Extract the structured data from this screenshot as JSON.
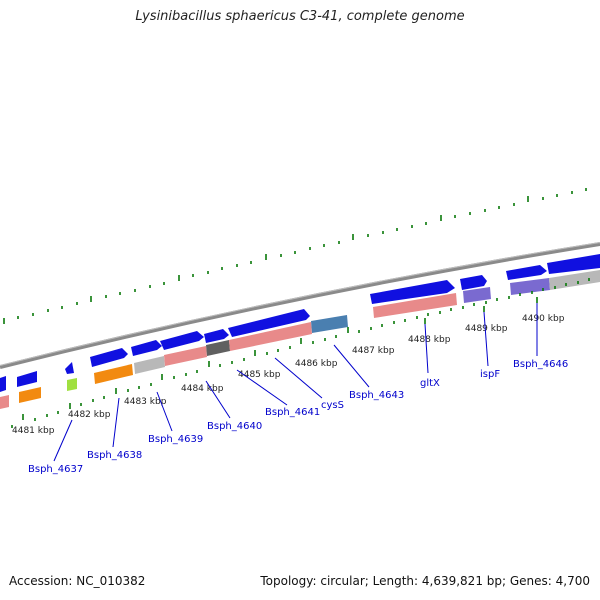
{
  "title": "Lysinibacillus sphaericus C3-41, complete genome",
  "accession": "Accession: NC_010382",
  "summary": "Topology: circular; Length: 4,639,821 bp; Genes: 4,700",
  "kbp_ticks": [
    "4481 kbp",
    "4482 kbp",
    "4483 kbp",
    "4484 kbp",
    "4485 kbp",
    "4486 kbp",
    "4487 kbp",
    "4488 kbp",
    "4489 kbp",
    "4490 kbp"
  ],
  "gene_labels": [
    "Bsph_4637",
    "Bsph_4638",
    "Bsph_4639",
    "Bsph_4640",
    "Bsph_4641",
    "cysS",
    "Bsph_4643",
    "gltX",
    "ispF",
    "Bsph_4646"
  ],
  "colors": {
    "cds": "#1010e0",
    "rna_pink": "#e88a8a",
    "gray_feature": "#b8b8b8",
    "dark_gray": "#606060",
    "steel_blue": "#4a7fb0",
    "purple": "#7a6ad0",
    "orange": "#f28a10",
    "lime": "#a0e040",
    "backbone": "#8a8a8a",
    "tick_green": "#0a7a0a",
    "label_blue": "#0000cc"
  }
}
